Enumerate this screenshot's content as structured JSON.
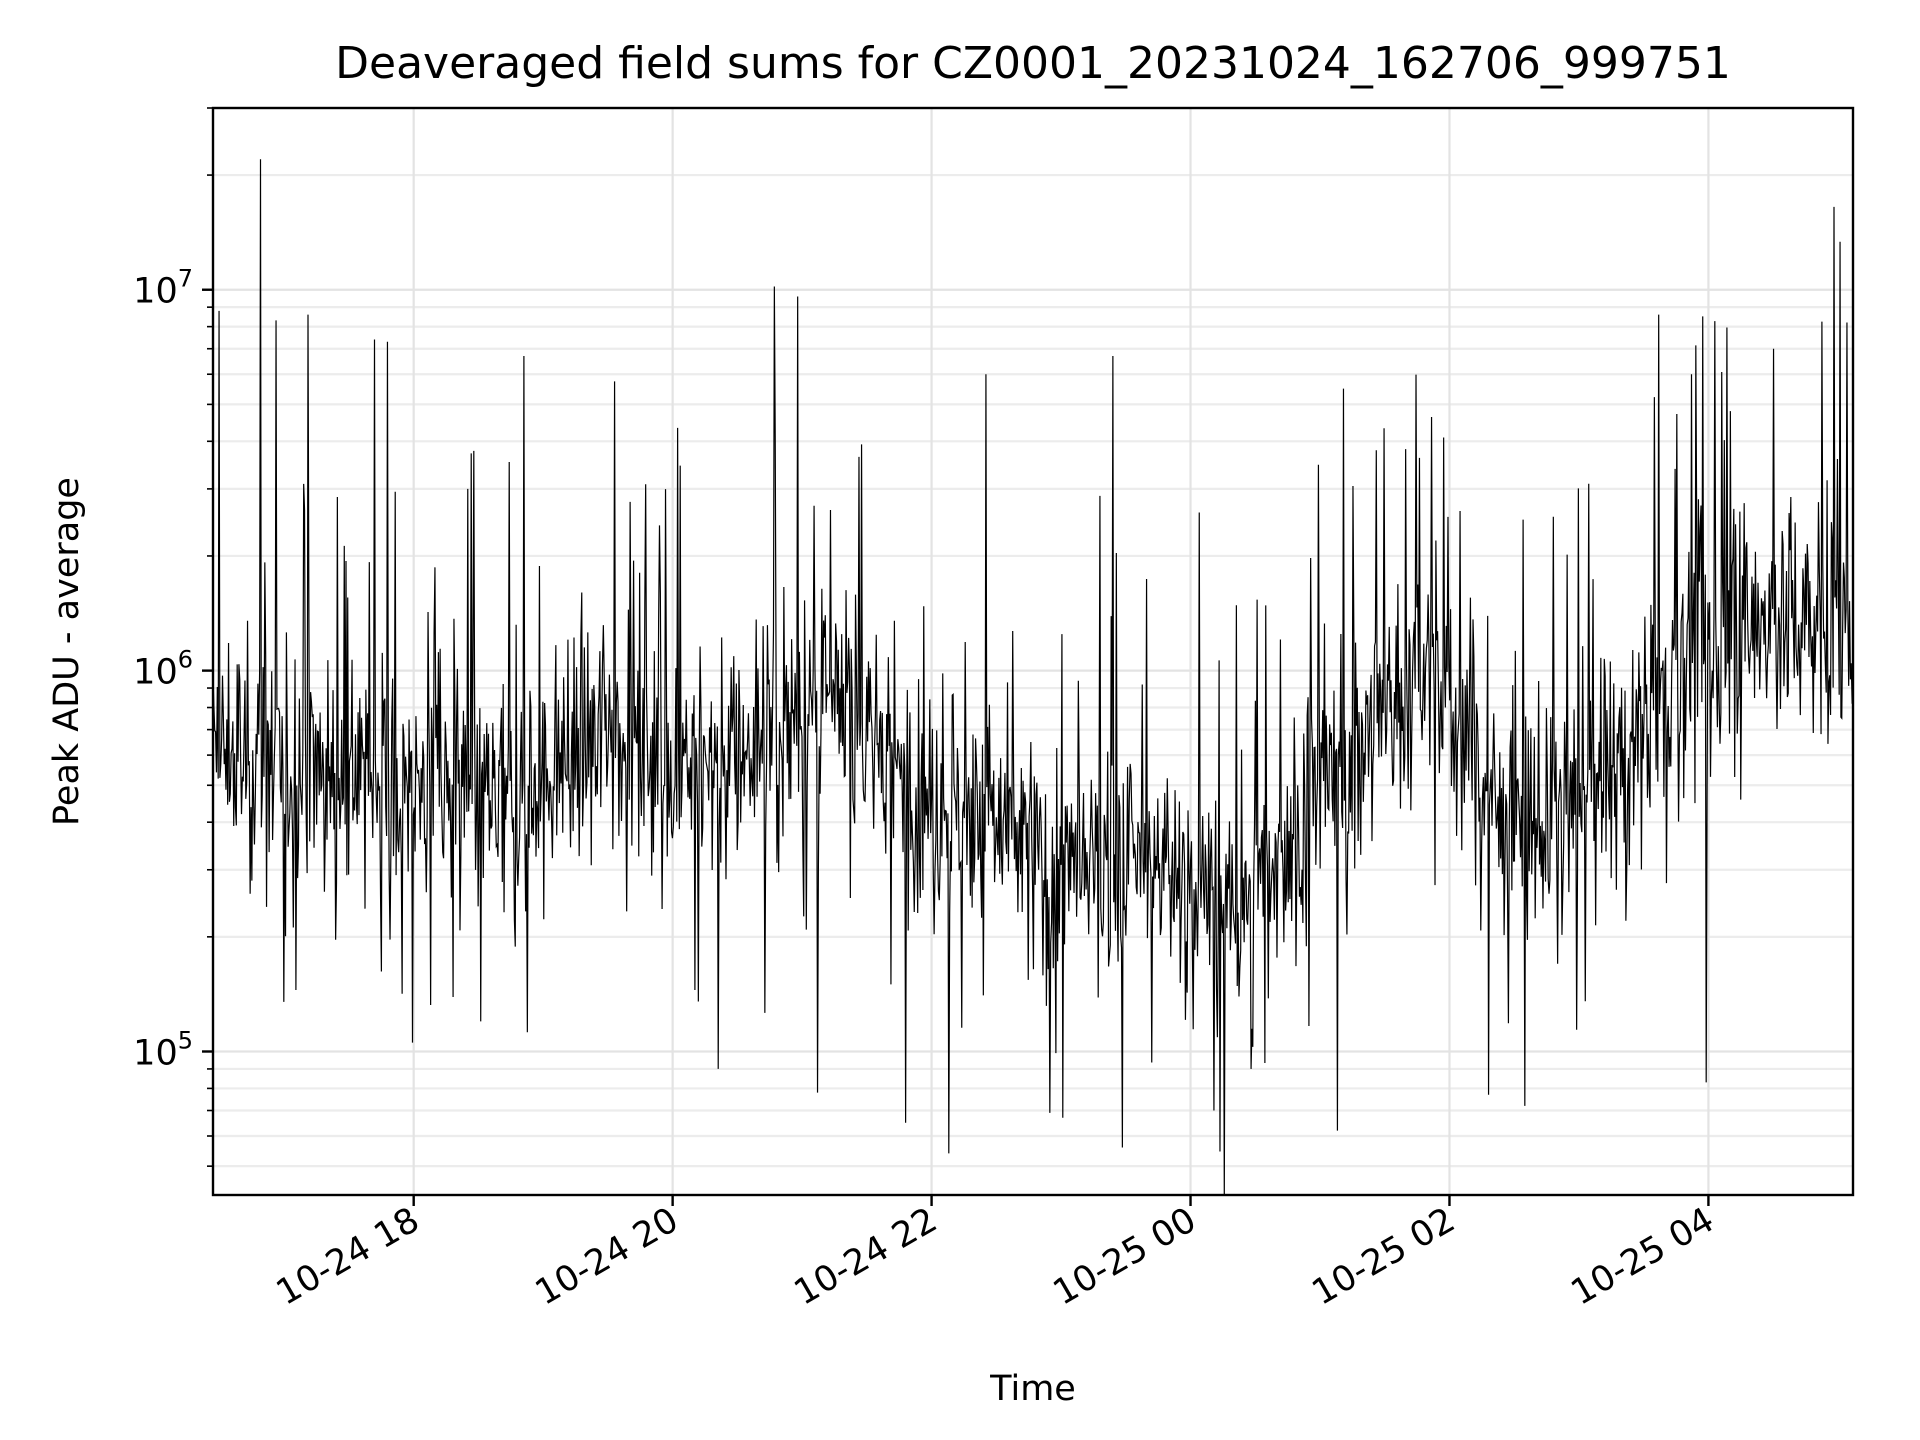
{
  "chart_data": {
    "type": "line",
    "title": "Deaveraged field sums for CZ0001_20231024_162706_999751",
    "xlabel": "Time",
    "ylabel": "Peak ADU - average",
    "yscale": "log",
    "ylim": [
      42000,
      30000000
    ],
    "xlim": [
      "2023-10-24 16:27",
      "2023-10-25 05:07"
    ],
    "grid": true,
    "x_ticks": [
      {
        "value": "2023-10-24 18:00",
        "label": "10-24 18"
      },
      {
        "value": "2023-10-24 20:00",
        "label": "10-24 20"
      },
      {
        "value": "2023-10-24 22:00",
        "label": "10-24 22"
      },
      {
        "value": "2023-10-25 00:00",
        "label": "10-25 00"
      },
      {
        "value": "2023-10-25 02:00",
        "label": "10-25 02"
      },
      {
        "value": "2023-10-25 04:00",
        "label": "10-25 04"
      }
    ],
    "y_ticks": [
      {
        "value": 100000,
        "base": "10",
        "exp": "5"
      },
      {
        "value": 1000000,
        "base": "10",
        "exp": "6"
      },
      {
        "value": 10000000,
        "base": "10",
        "exp": "7"
      }
    ],
    "series": [
      {
        "color": "#000000",
        "baseline": [
          [
            "2023-10-24 16:27",
            600000
          ],
          [
            "2023-10-24 17:30",
            550000
          ],
          [
            "2023-10-24 18:45",
            420000
          ],
          [
            "2023-10-24 19:30",
            750000
          ],
          [
            "2023-10-24 20:15",
            550000
          ],
          [
            "2023-10-24 20:45",
            700000
          ],
          [
            "2023-10-24 21:20",
            800000
          ],
          [
            "2023-10-24 22:00",
            450000
          ],
          [
            "2023-10-24 22:30",
            400000
          ],
          [
            "2023-10-24 23:00",
            280000
          ],
          [
            "2023-10-24 23:45",
            320000
          ],
          [
            "2023-10-25 00:20",
            220000
          ],
          [
            "2023-10-25 01:00",
            480000
          ],
          [
            "2023-10-25 01:30",
            800000
          ],
          [
            "2023-10-25 01:50",
            1000000
          ],
          [
            "2023-10-25 02:30",
            380000
          ],
          [
            "2023-10-25 03:00",
            420000
          ],
          [
            "2023-10-25 03:45",
            1000000
          ],
          [
            "2023-10-25 04:30",
            1400000
          ],
          [
            "2023-10-25 05:07",
            1300000
          ]
        ],
        "peaks": [
          [
            "2023-10-24 16:49",
            22000000
          ],
          [
            "2023-10-24 20:47",
            10200000
          ],
          [
            "2023-10-24 20:58",
            9600000
          ],
          [
            "2023-10-24 16:30",
            8800000
          ],
          [
            "2023-10-24 17:11",
            8600000
          ],
          [
            "2023-10-25 03:37",
            8600000
          ],
          [
            "2023-10-25 05:04",
            8200000
          ],
          [
            "2023-10-25 04:58",
            16500000
          ],
          [
            "2023-10-24 17:42",
            7400000
          ],
          [
            "2023-10-24 17:48",
            7300000
          ],
          [
            "2023-10-25 04:30",
            7000000
          ],
          [
            "2023-10-24 18:51",
            6700000
          ],
          [
            "2023-10-24 23:24",
            6700000
          ],
          [
            "2023-10-24 22:25",
            6000000
          ],
          [
            "2023-10-25 03:52",
            6000000
          ],
          [
            "2023-10-25 01:11",
            5500000
          ],
          [
            "2023-10-25 00:04",
            2600000
          ],
          [
            "2023-10-24 18:25",
            3000000
          ],
          [
            "2023-10-25 04:10",
            4800000
          ]
        ],
        "troughs": [
          [
            "2023-10-24 22:08",
            54000
          ],
          [
            "2023-10-24 21:48",
            65000
          ],
          [
            "2023-10-24 23:01",
            67000
          ],
          [
            "2023-10-25 01:08",
            62000
          ],
          [
            "2023-10-25 00:11",
            70000
          ],
          [
            "2023-10-25 02:35",
            72000
          ],
          [
            "2023-10-25 02:18",
            77000
          ],
          [
            "2023-10-24 21:07",
            78000
          ],
          [
            "2023-10-24 22:55",
            69000
          ],
          [
            "2023-10-25 00:28",
            90000
          ],
          [
            "2023-10-24 20:21",
            90000
          ],
          [
            "2023-10-25 03:59",
            83000
          ],
          [
            "2023-10-24 17:00",
            135000
          ],
          [
            "2023-10-24 18:31",
            120000
          ]
        ]
      }
    ]
  }
}
